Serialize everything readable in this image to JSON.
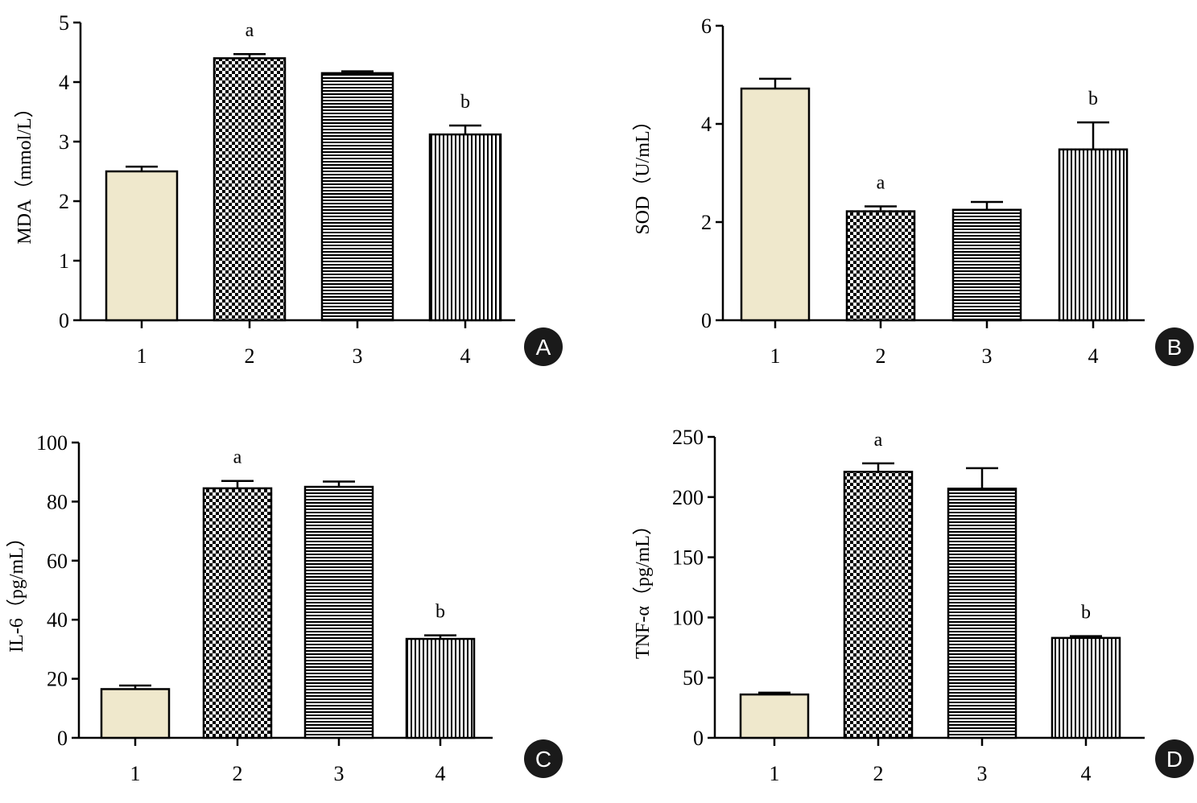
{
  "figure": {
    "colors": {
      "bar1": "#efe8cc",
      "stroke": "#000000",
      "badge": "#1a1a1a"
    },
    "patterns": [
      "solid",
      "checker",
      "horizontal-lines",
      "vertical-lines"
    ]
  },
  "chart_data": [
    {
      "panel": "A",
      "type": "bar",
      "title": "",
      "xlabel": "",
      "ylabel": "MDA（mmol/L）",
      "ylim": [
        0,
        5
      ],
      "yticks": [
        0,
        1,
        2,
        3,
        4,
        5
      ],
      "categories": [
        "1",
        "2",
        "3",
        "4"
      ],
      "values": [
        2.5,
        4.4,
        4.15,
        3.12
      ],
      "errors": [
        0.08,
        0.07,
        0.03,
        0.15
      ],
      "annotations": [
        "",
        "a",
        "",
        "b"
      ]
    },
    {
      "panel": "B",
      "type": "bar",
      "title": "",
      "xlabel": "",
      "ylabel": "SOD（U/mL）",
      "ylim": [
        0,
        6
      ],
      "yticks": [
        0,
        2,
        4,
        6
      ],
      "categories": [
        "1",
        "2",
        "3",
        "4"
      ],
      "values": [
        4.72,
        2.22,
        2.25,
        3.48
      ],
      "errors": [
        0.2,
        0.1,
        0.16,
        0.55
      ],
      "annotations": [
        "",
        "a",
        "",
        "b"
      ]
    },
    {
      "panel": "C",
      "type": "bar",
      "title": "",
      "xlabel": "",
      "ylabel": "IL-6（pg/mL）",
      "ylim": [
        0,
        100
      ],
      "yticks": [
        0,
        20,
        40,
        60,
        80,
        100
      ],
      "categories": [
        "1",
        "2",
        "3",
        "4"
      ],
      "values": [
        16.5,
        84.5,
        85.0,
        33.5
      ],
      "errors": [
        1.2,
        2.5,
        1.8,
        1.2
      ],
      "annotations": [
        "",
        "a",
        "",
        "b"
      ]
    },
    {
      "panel": "D",
      "type": "bar",
      "title": "",
      "xlabel": "",
      "ylabel": "TNF-α（pg/mL）",
      "ylim": [
        0,
        250
      ],
      "yticks": [
        0,
        50,
        100,
        150,
        200,
        250
      ],
      "categories": [
        "1",
        "2",
        "3",
        "4"
      ],
      "values": [
        36,
        221,
        207,
        83
      ],
      "errors": [
        1.5,
        7,
        17,
        1.5
      ],
      "annotations": [
        "",
        "a",
        "",
        "b"
      ]
    }
  ]
}
